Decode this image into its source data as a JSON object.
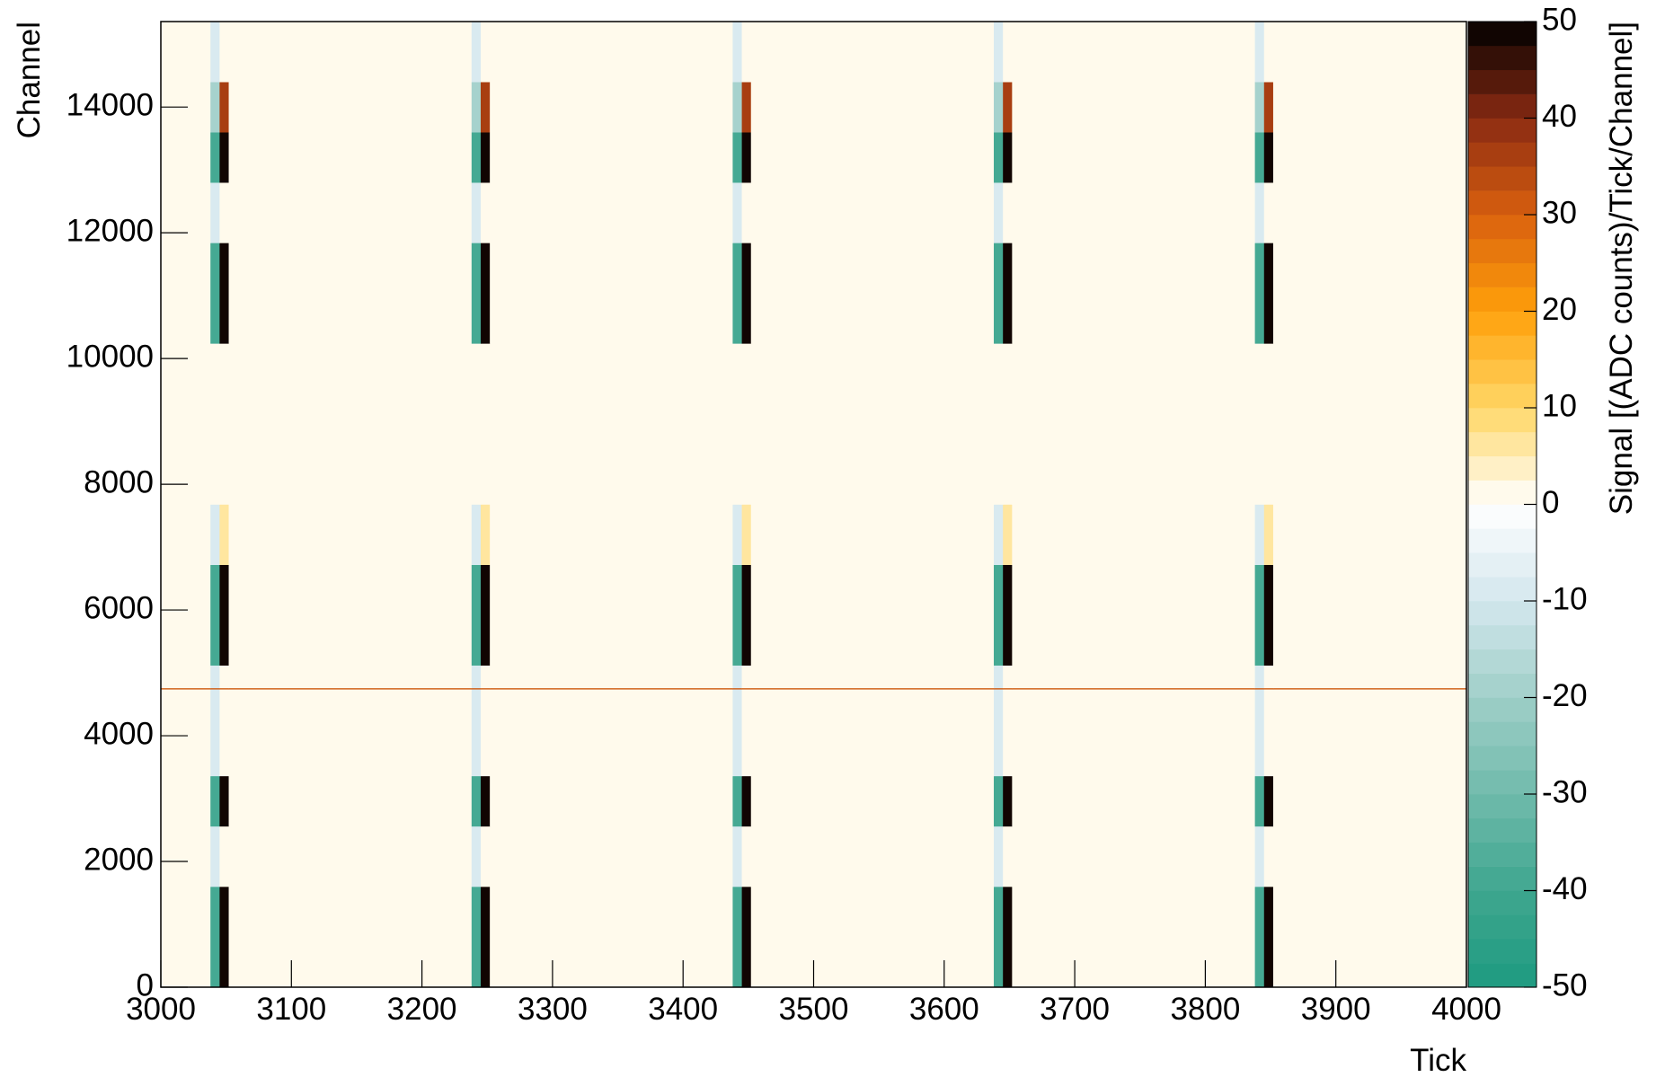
{
  "chart_data": {
    "type": "heatmap",
    "xlabel": "Tick",
    "ylabel": "Channel",
    "zlabel": "Signal [(ADC counts)/Tick/Channel]",
    "xlim": [
      3000,
      4000
    ],
    "ylim": [
      0,
      15360
    ],
    "zlim": [
      -50,
      50
    ],
    "xticks": [
      3000,
      3100,
      3200,
      3300,
      3400,
      3500,
      3600,
      3700,
      3800,
      3900,
      4000
    ],
    "yticks": [
      0,
      2000,
      4000,
      6000,
      8000,
      10000,
      12000,
      14000
    ],
    "zticks": [
      -50,
      -40,
      -30,
      -20,
      -10,
      0,
      10,
      20,
      30,
      40,
      50
    ],
    "levels": 40,
    "palette": [
      "#1e9a80",
      "#3fa68f",
      "#70baab",
      "#9fcfc8",
      "#d3e7ee",
      "#ffffff",
      "#ffd766",
      "#ffa00a",
      "#d9600f",
      "#8a2a12",
      "#000000"
    ],
    "xbins": [
      3000,
      3038,
      3045,
      3052,
      3238,
      3245,
      3252,
      3438,
      3445,
      3452,
      3638,
      3645,
      3652,
      3838,
      3845,
      3852,
      4000
    ],
    "ybins": [
      0,
      1600,
      2560,
      3360,
      4740,
      4760,
      5120,
      6720,
      7680,
      10240,
      11840,
      12800,
      13600,
      14400,
      15360
    ],
    "z": [
      [
        0,
        -40,
        50,
        0,
        -40,
        50,
        0,
        -40,
        50,
        0,
        -40,
        50,
        0,
        -40,
        50,
        0
      ],
      [
        0,
        -8,
        0,
        0,
        -8,
        0,
        0,
        -8,
        0,
        0,
        -8,
        0,
        0,
        -8,
        0,
        0
      ],
      [
        0,
        -40,
        50,
        0,
        -40,
        50,
        0,
        -40,
        50,
        0,
        -40,
        50,
        0,
        -40,
        50,
        0
      ],
      [
        0,
        -8,
        0,
        0,
        -8,
        0,
        0,
        -8,
        0,
        0,
        -8,
        0,
        0,
        -8,
        0,
        0
      ],
      [
        30,
        30,
        30,
        30,
        30,
        30,
        30,
        30,
        30,
        30,
        30,
        30,
        30,
        30,
        30,
        30
      ],
      [
        0,
        -8,
        0,
        0,
        -8,
        0,
        0,
        -8,
        0,
        0,
        -8,
        0,
        0,
        -8,
        0,
        0
      ],
      [
        0,
        -40,
        50,
        0,
        -40,
        50,
        0,
        -40,
        50,
        0,
        -40,
        50,
        0,
        -40,
        50,
        0
      ],
      [
        0,
        -8,
        5,
        0,
        -8,
        5,
        0,
        -8,
        5,
        0,
        -8,
        5,
        0,
        -8,
        5,
        0
      ],
      [
        0,
        0,
        0,
        0,
        0,
        0,
        0,
        0,
        0,
        0,
        0,
        0,
        0,
        0,
        0,
        0
      ],
      [
        0,
        -40,
        50,
        0,
        -40,
        50,
        0,
        -40,
        50,
        0,
        -40,
        50,
        0,
        -40,
        50,
        0
      ],
      [
        0,
        -8,
        0,
        0,
        -8,
        0,
        0,
        -8,
        0,
        0,
        -8,
        0,
        0,
        -8,
        0,
        0
      ],
      [
        0,
        -40,
        50,
        0,
        -40,
        50,
        0,
        -40,
        50,
        0,
        -40,
        50,
        0,
        -40,
        50,
        0
      ],
      [
        0,
        -20,
        35,
        0,
        -20,
        35,
        0,
        -20,
        35,
        0,
        -20,
        35,
        0,
        -20,
        35,
        0
      ],
      [
        0,
        -8,
        0,
        0,
        -8,
        0,
        0,
        -8,
        0,
        0,
        -8,
        0,
        0,
        -8,
        0,
        0
      ]
    ]
  }
}
